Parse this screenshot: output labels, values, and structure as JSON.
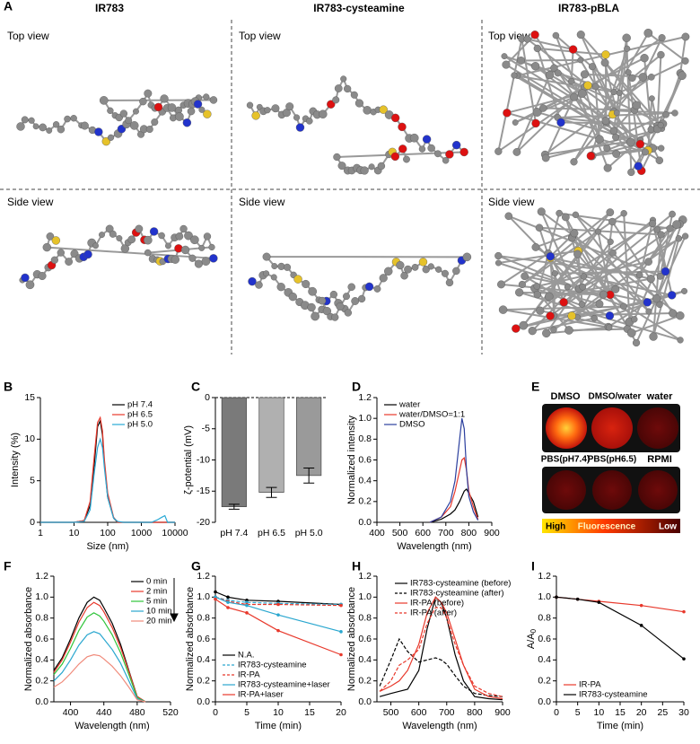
{
  "panel_A": {
    "label": "A",
    "columns": [
      "IR783",
      "IR783-cysteamine",
      "IR783-pBLA"
    ],
    "top": "Top view",
    "side": "Side view"
  },
  "panel_E": {
    "label": "E",
    "row1": [
      "DMSO",
      "DMSO/water",
      "water"
    ],
    "row2": [
      "PBS(pH7.4)",
      "PBS(pH6.5)",
      "RPMI"
    ],
    "colorbar": [
      "High",
      "Fluorescence",
      "Low"
    ]
  },
  "chart_data": [
    {
      "type": "line",
      "panel": "B",
      "xscale": "log",
      "xlabel": "Size (nm)",
      "ylabel": "Intensity (%)",
      "xlim": [
        1,
        10000
      ],
      "xticks": [
        1,
        10,
        100,
        1000,
        10000
      ],
      "ylim": [
        0,
        15
      ],
      "yticks": [
        0,
        5,
        10,
        15
      ],
      "legend": "upper right",
      "x": [
        1,
        10,
        20,
        30,
        40,
        50,
        60,
        70,
        80,
        100,
        150,
        200,
        300,
        1000,
        2000,
        3000,
        4000,
        5000,
        6000,
        10000
      ],
      "series": [
        {
          "name": "pH 7.4",
          "color": "#000000",
          "values": [
            0,
            0,
            0.2,
            2,
            7,
            11.5,
            12.2,
            10.5,
            7,
            3,
            0.5,
            0,
            0,
            0,
            0,
            0,
            0,
            0,
            0,
            0
          ]
        },
        {
          "name": "pH 6.5",
          "color": "#e8382b",
          "values": [
            0,
            0,
            0.2,
            2.5,
            8,
            12,
            12.6,
            11,
            7.5,
            3.5,
            0.6,
            0,
            0,
            0,
            0,
            0,
            0,
            0,
            0,
            0
          ]
        },
        {
          "name": "pH 5.0",
          "color": "#29a9d6",
          "values": [
            0,
            0,
            0.1,
            1.5,
            6,
            9,
            10,
            9,
            6.5,
            3,
            0.5,
            0.1,
            0,
            0,
            0,
            0.3,
            0.6,
            0.8,
            0,
            0
          ]
        }
      ]
    },
    {
      "type": "bar",
      "panel": "C",
      "ylabel": "ζ-potential (mV)",
      "categories": [
        "pH 7.4",
        "pH 6.5",
        "pH 5.0"
      ],
      "values": [
        -17.5,
        -15.2,
        -12.5
      ],
      "errors": [
        0.4,
        0.8,
        1.2
      ],
      "colors": [
        "#7a7a7a",
        "#b0b0b0",
        "#9a9a9a"
      ],
      "ylim": [
        -20,
        0
      ],
      "yticks": [
        0,
        -5,
        -10,
        -15,
        -20
      ]
    },
    {
      "type": "line",
      "panel": "D",
      "xlabel": "Wavelength (nm)",
      "ylabel": "Normalized intensity",
      "xlim": [
        400,
        900
      ],
      "xticks": [
        400,
        500,
        600,
        700,
        800,
        900
      ],
      "ylim": [
        0,
        1.2
      ],
      "yticks": [
        {
          "value": 0,
          "label": "0.0"
        },
        0.2,
        0.4,
        0.6,
        0.8,
        {
          "value": 1,
          "label": "1.0"
        },
        1.2
      ],
      "legend": "upper left",
      "x": [
        630,
        680,
        720,
        740,
        760,
        770,
        780,
        790,
        800,
        820,
        840
      ],
      "series": [
        {
          "name": "water",
          "color": "#000000",
          "values": [
            0,
            0.03,
            0.08,
            0.12,
            0.2,
            0.25,
            0.3,
            0.32,
            0.28,
            0.2,
            0.05
          ]
        },
        {
          "name": "water/DMSO=1:1",
          "color": "#e8382b",
          "values": [
            0,
            0.05,
            0.15,
            0.3,
            0.5,
            0.6,
            0.62,
            0.5,
            0.3,
            0.15,
            0.03
          ]
        },
        {
          "name": "DMSO",
          "color": "#2b3f9e",
          "values": [
            0,
            0.05,
            0.2,
            0.4,
            0.8,
            1.0,
            0.9,
            0.5,
            0.25,
            0.1,
            0.02
          ]
        }
      ]
    },
    {
      "type": "line",
      "panel": "F",
      "xlabel": "Wavelength (nm)",
      "ylabel": "Normalized absorbance",
      "xlim": [
        380,
        520
      ],
      "xticks": [
        400,
        440,
        480,
        520
      ],
      "ylim": [
        0,
        1.2
      ],
      "yticks": [
        {
          "value": 0,
          "label": "0.0"
        },
        0.2,
        0.4,
        0.6,
        0.8,
        {
          "value": 1,
          "label": "1.0"
        },
        1.2
      ],
      "legend": "right",
      "x": [
        380,
        390,
        400,
        410,
        420,
        428,
        435,
        440,
        450,
        460,
        470,
        480,
        490
      ],
      "series": [
        {
          "name": "0 min",
          "color": "#000000",
          "values": [
            0.3,
            0.42,
            0.6,
            0.8,
            0.95,
            1.0,
            0.97,
            0.9,
            0.75,
            0.55,
            0.3,
            0.05,
            0
          ]
        },
        {
          "name": "2 min",
          "color": "#e8382b",
          "values": [
            0.28,
            0.4,
            0.57,
            0.76,
            0.9,
            0.95,
            0.92,
            0.86,
            0.71,
            0.52,
            0.29,
            0.05,
            0
          ]
        },
        {
          "name": "5 min",
          "color": "#2fc43a",
          "values": [
            0.26,
            0.36,
            0.51,
            0.68,
            0.81,
            0.85,
            0.82,
            0.77,
            0.64,
            0.47,
            0.26,
            0.04,
            0
          ]
        },
        {
          "name": "10 min",
          "color": "#2aa7cf",
          "values": [
            0.2,
            0.28,
            0.4,
            0.54,
            0.64,
            0.67,
            0.65,
            0.6,
            0.5,
            0.37,
            0.2,
            0.03,
            0
          ]
        },
        {
          "name": "20 min",
          "color": "#f08a7a",
          "values": [
            0.14,
            0.19,
            0.27,
            0.36,
            0.43,
            0.45,
            0.44,
            0.41,
            0.34,
            0.25,
            0.14,
            0.02,
            0
          ]
        }
      ]
    },
    {
      "type": "line",
      "panel": "G",
      "xlabel": "Time (min)",
      "ylabel": "Normalized absorbance",
      "xlim": [
        0,
        20
      ],
      "xticks": [
        0,
        5,
        10,
        15,
        20
      ],
      "ylim": [
        0,
        1.2
      ],
      "yticks": [
        {
          "value": 0,
          "label": "0.0"
        },
        0.2,
        0.4,
        0.6,
        0.8,
        {
          "value": 1,
          "label": "1.0"
        },
        1.2
      ],
      "legend": "lower left",
      "markers": true,
      "x": [
        0,
        2,
        5,
        10,
        20
      ],
      "series": [
        {
          "name": "N.A.",
          "color": "#000000",
          "values": [
            1.05,
            1.0,
            0.97,
            0.96,
            0.93
          ]
        },
        {
          "name": "IR783-cysteamine",
          "color": "#2aa7cf",
          "dash": true,
          "values": [
            1.0,
            0.97,
            0.95,
            0.94,
            0.93
          ]
        },
        {
          "name": "IR-PA",
          "color": "#e8382b",
          "dash": true,
          "values": [
            1.0,
            0.96,
            0.93,
            0.93,
            0.92
          ]
        },
        {
          "name": "IR783-cysteamine+laser",
          "color": "#2aa7cf",
          "values": [
            1.0,
            0.95,
            0.92,
            0.83,
            0.67
          ]
        },
        {
          "name": "IR-PA+laser",
          "color": "#e8382b",
          "values": [
            0.98,
            0.9,
            0.85,
            0.68,
            0.45
          ]
        }
      ]
    },
    {
      "type": "line",
      "panel": "H",
      "xlabel": "Wavelength (nm)",
      "ylabel": "Normalized absorbance",
      "xlim": [
        450,
        900
      ],
      "xticks": [
        500,
        600,
        700,
        800,
        900
      ],
      "ylim": [
        0,
        1.2
      ],
      "yticks": [
        {
          "value": 0,
          "label": "0.0"
        },
        0.2,
        0.4,
        0.6,
        0.8,
        {
          "value": 1,
          "label": "1.0"
        },
        1.2
      ],
      "legend": "upper right",
      "x": [
        460,
        500,
        530,
        560,
        600,
        630,
        660,
        680,
        700,
        730,
        760,
        800,
        850,
        900
      ],
      "series": [
        {
          "name": "IR783-cysteamine (before)",
          "color": "#000000",
          "values": [
            0.05,
            0.08,
            0.1,
            0.12,
            0.3,
            0.7,
            1.0,
            0.95,
            0.8,
            0.45,
            0.2,
            0.05,
            0.03,
            0.02
          ]
        },
        {
          "name": "IR783-cysteamine (after)",
          "color": "#000000",
          "dash": true,
          "values": [
            0.15,
            0.4,
            0.6,
            0.48,
            0.38,
            0.4,
            0.42,
            0.4,
            0.36,
            0.25,
            0.15,
            0.08,
            0.06,
            0.05
          ]
        },
        {
          "name": "IR-PA (before)",
          "color": "#e8382b",
          "values": [
            0.1,
            0.15,
            0.2,
            0.3,
            0.55,
            0.85,
            1.0,
            0.95,
            0.85,
            0.6,
            0.35,
            0.12,
            0.05,
            0.03
          ]
        },
        {
          "name": "IR-PA (after)",
          "color": "#e8382b",
          "dash": true,
          "values": [
            0.1,
            0.2,
            0.35,
            0.4,
            0.5,
            0.75,
            0.9,
            0.9,
            0.8,
            0.55,
            0.35,
            0.15,
            0.08,
            0.05
          ]
        }
      ]
    },
    {
      "type": "line",
      "panel": "I",
      "xlabel": "Time (min)",
      "ylabel": "A/A",
      "ylabel_sub": "0",
      "xlim": [
        0,
        30
      ],
      "xticks": [
        0,
        5,
        10,
        15,
        20,
        25,
        30
      ],
      "ylim": [
        0,
        1.2
      ],
      "yticks": [
        {
          "value": 0,
          "label": "0.0"
        },
        0.2,
        0.4,
        0.6,
        0.8,
        {
          "value": 1,
          "label": "1.0"
        },
        1.2
      ],
      "legend": "lower left",
      "markers": true,
      "x": [
        0,
        5,
        10,
        20,
        30
      ],
      "series": [
        {
          "name": "IR-PA",
          "color": "#e8382b",
          "values": [
            1.0,
            0.98,
            0.96,
            0.92,
            0.86
          ]
        },
        {
          "name": "IR783-cysteamine",
          "color": "#000000",
          "values": [
            1.0,
            0.98,
            0.95,
            0.73,
            0.41
          ]
        }
      ]
    }
  ]
}
